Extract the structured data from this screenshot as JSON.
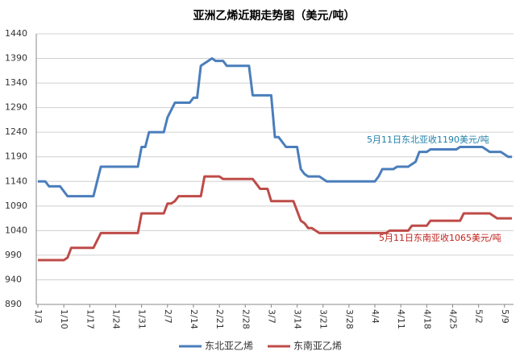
{
  "chart_data": {
    "type": "line",
    "title": "亚洲乙烯近期走势图（美元/吨）",
    "categories": [
      "1/3",
      null,
      null,
      null,
      null,
      null,
      null,
      "1/10",
      null,
      null,
      null,
      null,
      null,
      null,
      "1/17",
      null,
      null,
      null,
      null,
      null,
      null,
      "1/24",
      null,
      null,
      null,
      null,
      null,
      null,
      "1/31",
      null,
      null,
      null,
      null,
      null,
      null,
      "2/7",
      null,
      null,
      null,
      null,
      null,
      null,
      "2/14",
      null,
      null,
      null,
      null,
      null,
      null,
      "2/21",
      null,
      null,
      null,
      null,
      null,
      null,
      "2/28",
      null,
      null,
      null,
      null,
      null,
      null,
      "3/7",
      null,
      null,
      null,
      null,
      null,
      null,
      "3/14",
      null,
      null,
      null,
      null,
      null,
      null,
      "3/21",
      null,
      null,
      null,
      null,
      null,
      null,
      "3/28",
      null,
      null,
      null,
      null,
      null,
      null,
      "4/4",
      null,
      null,
      null,
      null,
      null,
      null,
      "4/11",
      null,
      null,
      null,
      null,
      null,
      null,
      "4/18",
      null,
      null,
      null,
      null,
      null,
      null,
      "4/25",
      null,
      null,
      null,
      null,
      null,
      null,
      "5/2",
      null,
      null,
      null,
      null,
      null,
      null,
      "5/9",
      null,
      null
    ],
    "series": [
      {
        "name": "东北亚乙烯",
        "color": "#4a7ebb",
        "values": [
          1140,
          1140,
          1140,
          1130,
          1130,
          1130,
          1130,
          1120,
          1110,
          1110,
          1110,
          1110,
          1110,
          1110,
          1110,
          1110,
          1140,
          1170,
          1170,
          1170,
          1170,
          1170,
          1170,
          1170,
          1170,
          1170,
          1170,
          1170,
          1210,
          1210,
          1240,
          1240,
          1240,
          1240,
          1240,
          1270,
          1285,
          1300,
          1300,
          1300,
          1300,
          1300,
          1310,
          1310,
          1375,
          1380,
          1385,
          1390,
          1385,
          1385,
          1385,
          1375,
          1375,
          1375,
          1375,
          1375,
          1375,
          1375,
          1315,
          1315,
          1315,
          1315,
          1315,
          1315,
          1230,
          1230,
          1220,
          1210,
          1210,
          1210,
          1210,
          1165,
          1155,
          1150,
          1150,
          1150,
          1150,
          1145,
          1140,
          1140,
          1140,
          1140,
          1140,
          1140,
          1140,
          1140,
          1140,
          1140,
          1140,
          1140,
          1140,
          1140,
          1150,
          1165,
          1165,
          1165,
          1165,
          1170,
          1170,
          1170,
          1170,
          1175,
          1180,
          1200,
          1200,
          1200,
          1205,
          1205,
          1205,
          1205,
          1205,
          1205,
          1205,
          1205,
          1210,
          1210,
          1210,
          1210,
          1210,
          1210,
          1210,
          1205,
          1200,
          1200,
          1200,
          1200,
          1195,
          1190,
          1190
        ]
      },
      {
        "name": "东南亚乙烯",
        "color": "#be4b48",
        "values": [
          980,
          980,
          980,
          980,
          980,
          980,
          980,
          980,
          985,
          1005,
          1005,
          1005,
          1005,
          1005,
          1005,
          1005,
          1020,
          1035,
          1035,
          1035,
          1035,
          1035,
          1035,
          1035,
          1035,
          1035,
          1035,
          1035,
          1075,
          1075,
          1075,
          1075,
          1075,
          1075,
          1075,
          1095,
          1095,
          1100,
          1110,
          1110,
          1110,
          1110,
          1110,
          1110,
          1110,
          1150,
          1150,
          1150,
          1150,
          1150,
          1145,
          1145,
          1145,
          1145,
          1145,
          1145,
          1145,
          1145,
          1145,
          1135,
          1125,
          1125,
          1125,
          1100,
          1100,
          1100,
          1100,
          1100,
          1100,
          1100,
          1080,
          1060,
          1055,
          1045,
          1045,
          1040,
          1035,
          1035,
          1035,
          1035,
          1035,
          1035,
          1035,
          1035,
          1035,
          1035,
          1035,
          1035,
          1035,
          1035,
          1035,
          1035,
          1035,
          1035,
          1035,
          1040,
          1040,
          1040,
          1040,
          1040,
          1040,
          1050,
          1050,
          1050,
          1050,
          1050,
          1060,
          1060,
          1060,
          1060,
          1060,
          1060,
          1060,
          1060,
          1060,
          1075,
          1075,
          1075,
          1075,
          1075,
          1075,
          1075,
          1075,
          1070,
          1065,
          1065,
          1065,
          1065,
          1065
        ]
      }
    ],
    "annotations": [
      {
        "text": "5月11日东北亚收1190美元/吨",
        "color": "#1f7fa8"
      },
      {
        "text": "5月11日东南亚收1065美元/吨",
        "color": "#c0201a"
      }
    ],
    "ylim": [
      890,
      1440
    ],
    "yticks": [
      890,
      940,
      990,
      1040,
      1090,
      1140,
      1190,
      1240,
      1290,
      1340,
      1390,
      1440
    ],
    "grid": true,
    "legend": "bottom"
  }
}
